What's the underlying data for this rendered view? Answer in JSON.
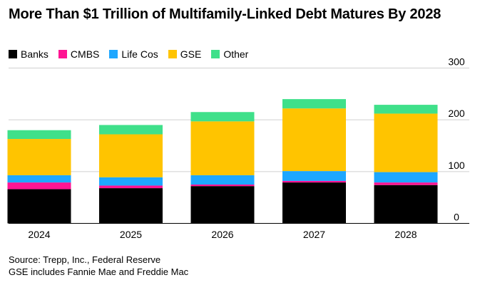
{
  "title": "More Than $1 Trillion of Multifamily-Linked Debt Matures By 2028",
  "source": "Source: Trepp, Inc., Federal Reserve",
  "footnote": "GSE includes Fannie Mae and Freddie Mac",
  "colors": {
    "Banks": "#000000",
    "CMBS": "#ff1493",
    "Life Cos": "#1ea7ff",
    "GSE": "#ffc400",
    "Other": "#3fe08a",
    "grid": "#cfcfcf"
  },
  "chart_data": {
    "type": "bar",
    "stacked": true,
    "title": "More Than $1 Trillion of Multifamily-Linked Debt Matures By 2028",
    "categories": [
      "2024",
      "2025",
      "2026",
      "2027",
      "2028"
    ],
    "series": [
      {
        "name": "Banks",
        "values": [
          66,
          68,
          72,
          79,
          74
        ]
      },
      {
        "name": "CMBS",
        "values": [
          13,
          5,
          3,
          3,
          5
        ]
      },
      {
        "name": "Life Cos",
        "values": [
          14,
          16,
          18,
          19,
          20
        ]
      },
      {
        "name": "GSE",
        "values": [
          70,
          83,
          104,
          121,
          113
        ]
      },
      {
        "name": "Other",
        "values": [
          17,
          18,
          18,
          18,
          17
        ]
      }
    ],
    "ylim": [
      0,
      300
    ],
    "yticks": [
      0,
      100,
      200,
      300
    ],
    "xlabel": "",
    "ylabel": "",
    "legend_position": "top-left",
    "grid": true
  }
}
